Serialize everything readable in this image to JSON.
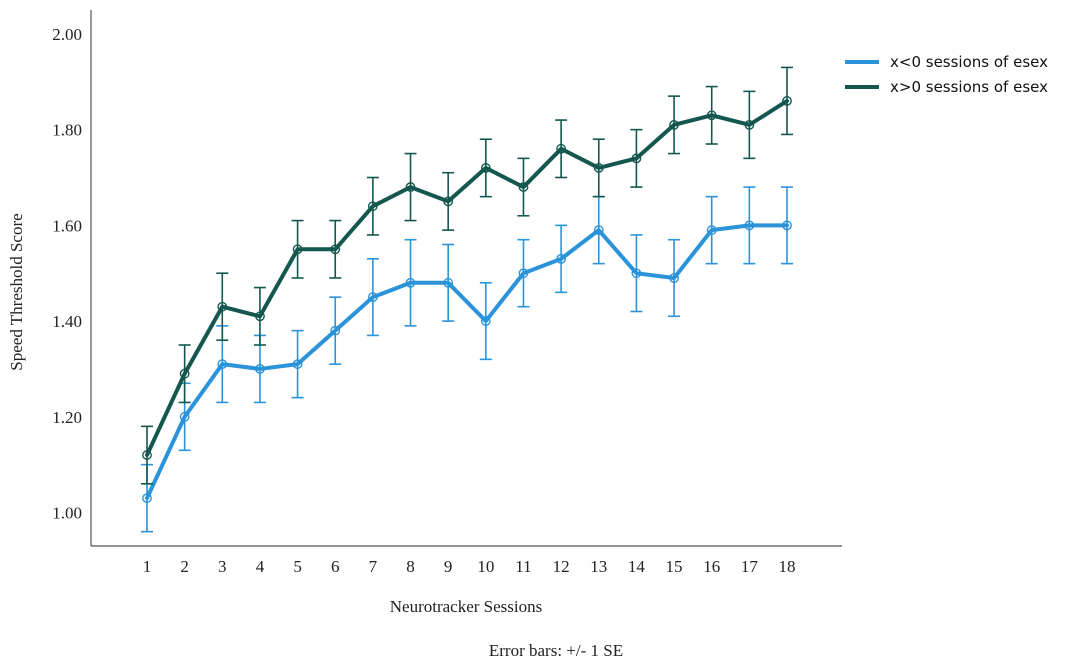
{
  "chart_data": {
    "type": "line",
    "xlabel": "Neurotracker Sessions",
    "ylabel": "Speed Threshold Score",
    "footnote": "Error bars: +/- 1 SE",
    "ylim": [
      0.93,
      2.05
    ],
    "yticks": [
      1.0,
      1.2,
      1.4,
      1.6,
      1.8,
      2.0
    ],
    "ytick_labels": [
      "1.00",
      "1.20",
      "1.40",
      "1.60",
      "1.80",
      "2.00"
    ],
    "x": [
      1,
      2,
      3,
      4,
      5,
      6,
      7,
      8,
      9,
      10,
      11,
      12,
      13,
      14,
      15,
      16,
      17,
      18
    ],
    "grid": false,
    "legend_position": "top-right",
    "series": [
      {
        "name": "x<0 sessions of esex",
        "color": "#2a93d9",
        "values": [
          1.03,
          1.2,
          1.31,
          1.3,
          1.31,
          1.38,
          1.45,
          1.48,
          1.48,
          1.4,
          1.5,
          1.53,
          1.59,
          1.5,
          1.49,
          1.59,
          1.6,
          1.6
        ],
        "error": [
          0.07,
          0.07,
          0.08,
          0.07,
          0.07,
          0.07,
          0.08,
          0.09,
          0.08,
          0.08,
          0.07,
          0.07,
          0.07,
          0.08,
          0.08,
          0.07,
          0.08,
          0.08
        ]
      },
      {
        "name": "x>0 sessions of esex",
        "color": "#13574f",
        "values": [
          1.12,
          1.29,
          1.43,
          1.41,
          1.55,
          1.55,
          1.64,
          1.68,
          1.65,
          1.72,
          1.68,
          1.76,
          1.72,
          1.74,
          1.81,
          1.83,
          1.81,
          1.86
        ],
        "error": [
          0.06,
          0.06,
          0.07,
          0.06,
          0.06,
          0.06,
          0.06,
          0.07,
          0.06,
          0.06,
          0.06,
          0.06,
          0.06,
          0.06,
          0.06,
          0.06,
          0.07,
          0.07
        ]
      }
    ]
  }
}
